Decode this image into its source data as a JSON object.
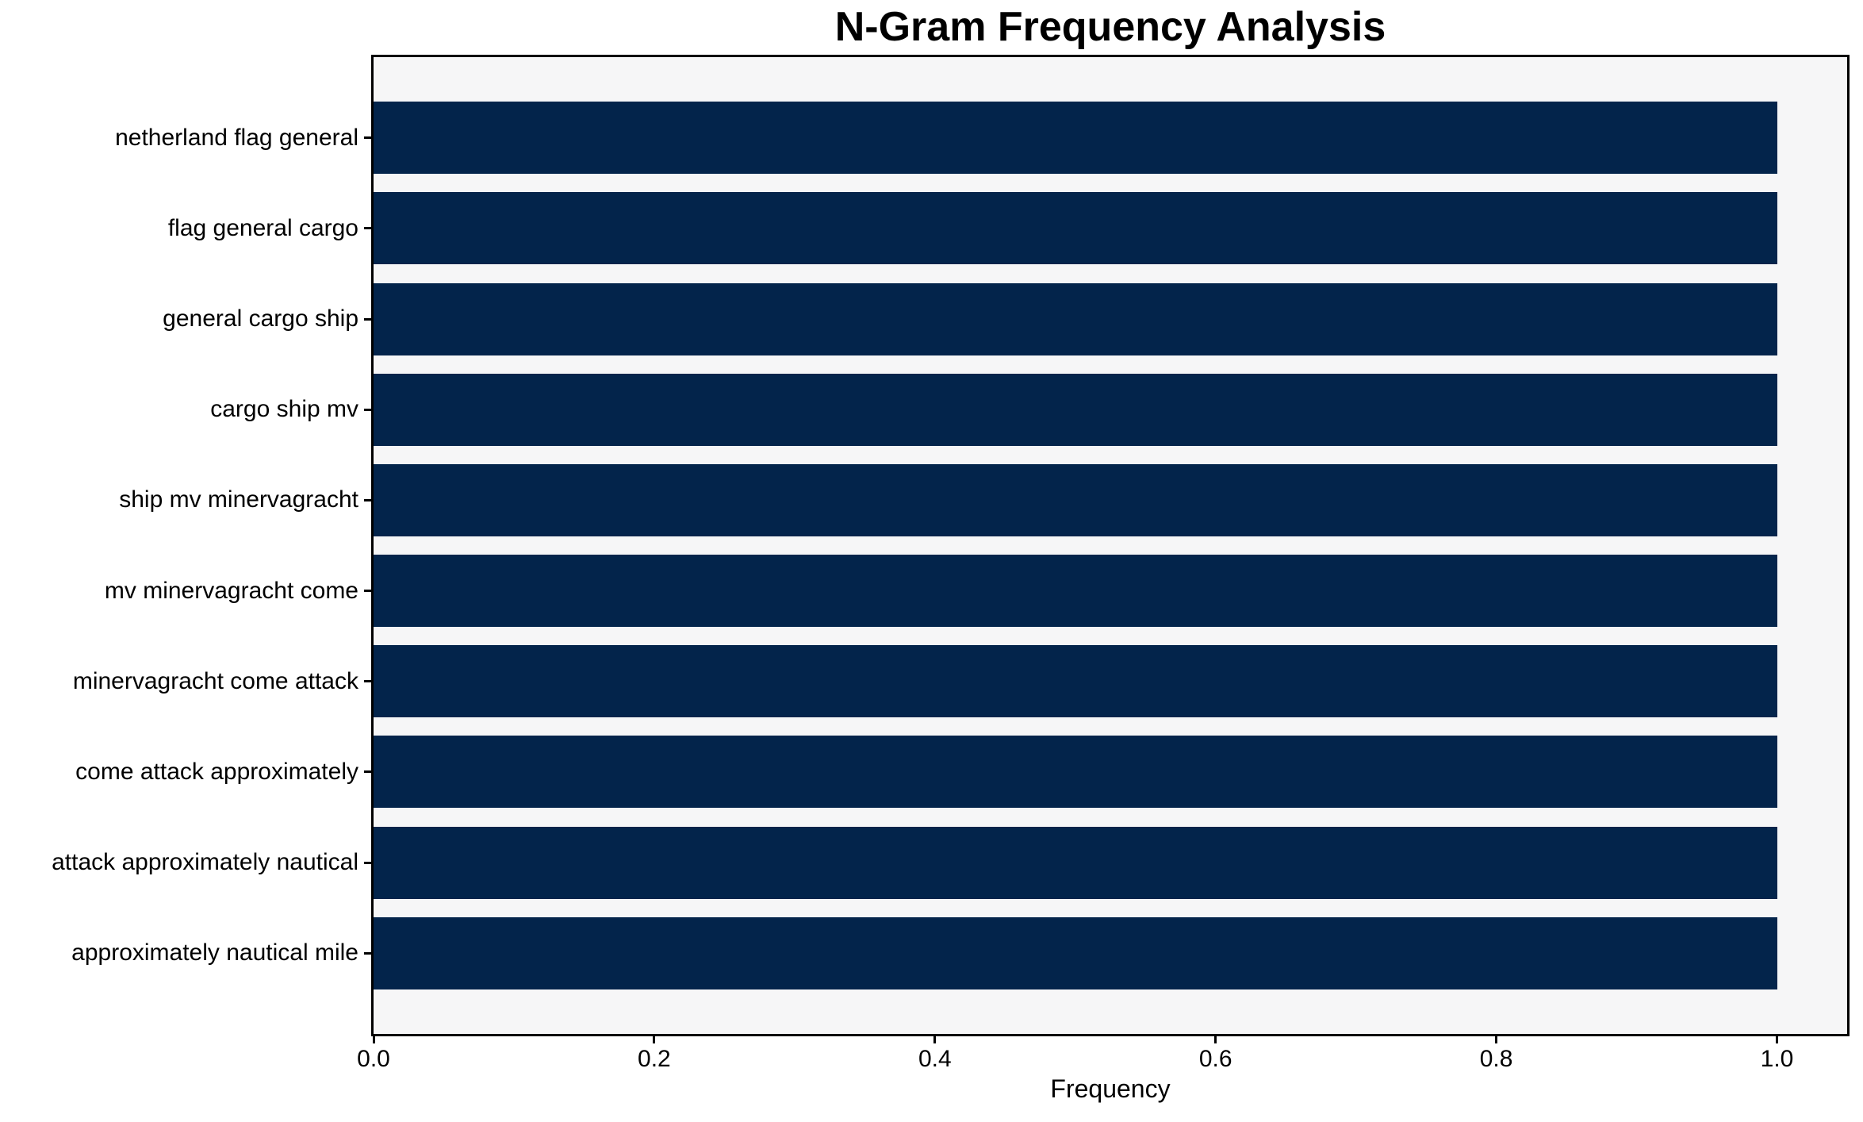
{
  "chart_data": {
    "type": "bar",
    "orientation": "horizontal",
    "title": "N-Gram Frequency Analysis",
    "xlabel": "Frequency",
    "ylabel": "",
    "categories": [
      "netherland flag general",
      "flag general cargo",
      "general cargo ship",
      "cargo ship mv",
      "ship mv minervagracht",
      "mv minervagracht come",
      "minervagracht come attack",
      "come attack approximately",
      "attack approximately nautical",
      "approximately nautical mile"
    ],
    "values": [
      1.0,
      1.0,
      1.0,
      1.0,
      1.0,
      1.0,
      1.0,
      1.0,
      1.0,
      1.0
    ],
    "xlim": [
      0,
      1.05
    ],
    "xticks": [
      0.0,
      0.2,
      0.4,
      0.6,
      0.8,
      1.0
    ],
    "grid": false,
    "legend": null,
    "colors": {
      "bar": "#03244b",
      "plot_background": "#f6f6f7",
      "figure_background": "#ffffff",
      "axis": "#000000",
      "text": "#000000"
    }
  }
}
